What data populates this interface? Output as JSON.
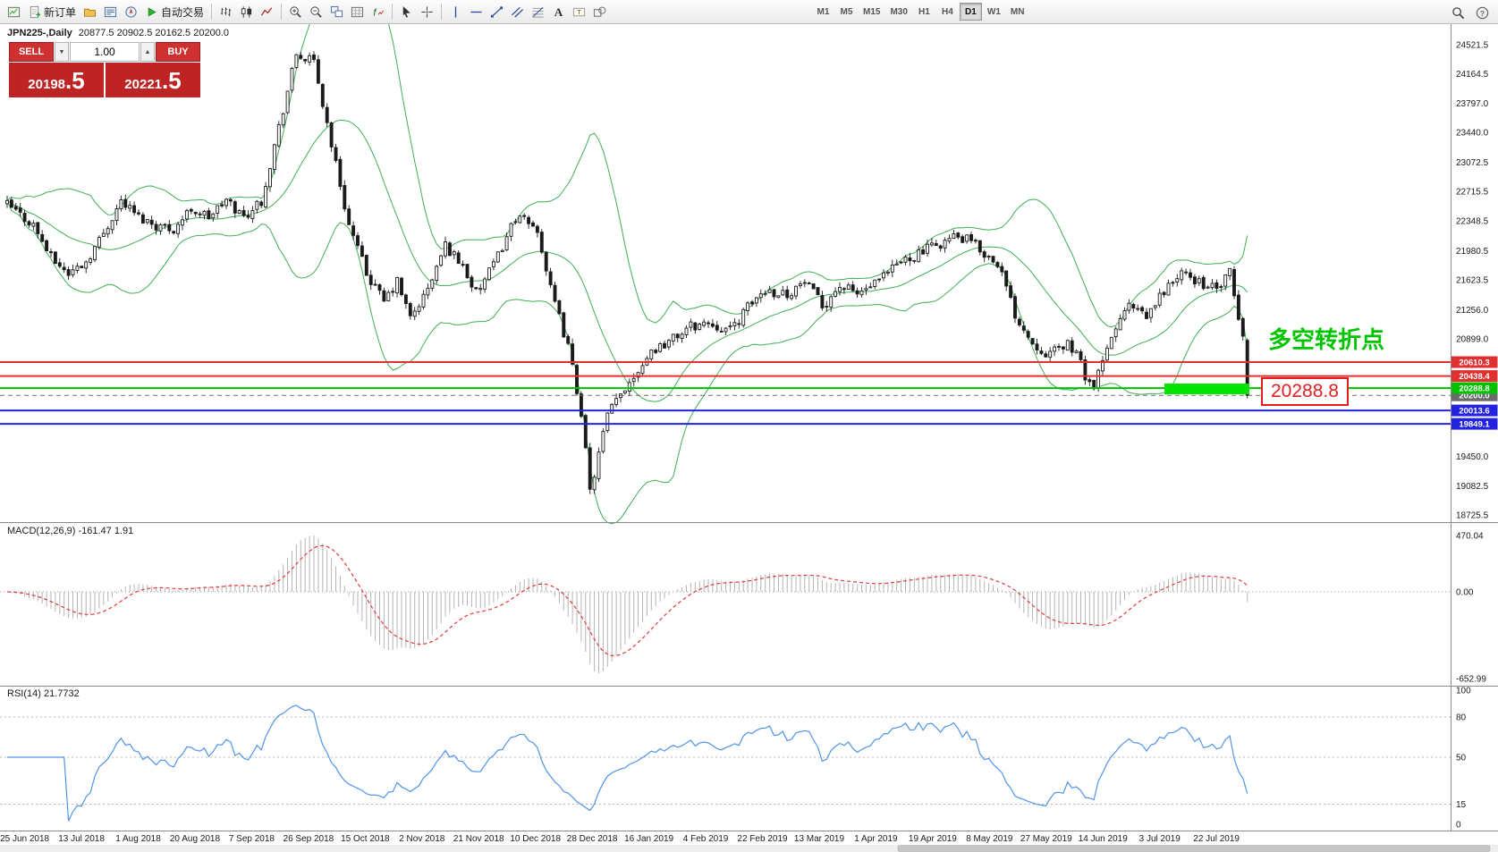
{
  "toolbar": {
    "groups": [
      {
        "items": [
          {
            "icon": "terminal"
          },
          {
            "icon": "new-order",
            "label": "新订单"
          },
          {
            "icon": "profiles"
          },
          {
            "icon": "market-watch"
          },
          {
            "icon": "navigator"
          },
          {
            "icon": "autotrading",
            "label": "自动交易"
          }
        ]
      },
      {
        "items": [
          {
            "icon": "bar-chart"
          },
          {
            "icon": "candlestick-chart"
          },
          {
            "icon": "line-chart"
          }
        ]
      },
      {
        "items": [
          {
            "icon": "zoom-in"
          },
          {
            "icon": "zoom-out"
          },
          {
            "icon": "tile-windows"
          },
          {
            "icon": "chart-grid"
          },
          {
            "icon": "indicators"
          }
        ]
      },
      {
        "items": [
          {
            "icon": "cursor"
          },
          {
            "icon": "crosshair"
          }
        ]
      },
      {
        "items": [
          {
            "icon": "vertical-line"
          },
          {
            "icon": "horizontal-line"
          },
          {
            "icon": "trendline"
          },
          {
            "icon": "channel"
          },
          {
            "icon": "fibonacci"
          },
          {
            "icon": "text"
          },
          {
            "icon": "text-label"
          },
          {
            "icon": "shapes"
          }
        ]
      }
    ],
    "timeframes": [
      "M1",
      "M5",
      "M15",
      "M30",
      "H1",
      "H4",
      "D1",
      "W1",
      "MN"
    ],
    "active_timeframe": "D1",
    "right_items": [
      {
        "icon": "search"
      },
      {
        "icon": "help"
      }
    ]
  },
  "chart": {
    "title": "JPN225-,Daily",
    "ohlc": "20877.5 20902.5 20162.5 20200.0"
  },
  "trade_panel": {
    "sell_label": "SELL",
    "buy_label": "BUY",
    "volume": "1.00",
    "spin_down_icon": "▼",
    "spin_up_icon": "▲",
    "sell_price": "20198.5",
    "buy_price": "20221.5"
  },
  "annotations": {
    "turning_point": "多空转折点",
    "level_label": "20288.8"
  },
  "levels": [
    {
      "label": "20610.3",
      "value": 20610.3,
      "color": "#e03030",
      "width": 2
    },
    {
      "label": "20438.4",
      "value": 20438.4,
      "color": "#e03030",
      "width": 2
    },
    {
      "label": "20288.8",
      "value": 20288.8,
      "color": "#00c000",
      "width": 2
    },
    {
      "label": "20200.0",
      "value": 20200.0,
      "color": "#6a6a6a",
      "width": 1,
      "dashed": true
    },
    {
      "label": "20013.6",
      "value": 20013.6,
      "color": "#2222e0",
      "width": 2
    },
    {
      "label": "19849.1",
      "value": 19849.1,
      "color": "#2222e0",
      "width": 2
    }
  ],
  "price_axis": {
    "ticks": [
      "24521.5",
      "24164.5",
      "23797.0",
      "23440.0",
      "23072.5",
      "22715.5",
      "22348.5",
      "21980.5",
      "21623.5",
      "21256.0",
      "20899.0",
      "19450.0",
      "19082.5",
      "18725.5"
    ]
  },
  "macd_panel": {
    "label": "MACD(12,26,9) -161.47 1.91",
    "axis": [
      {
        "label": "470.04",
        "value": 470.04
      },
      {
        "label": "0.00",
        "value": 0
      },
      {
        "label": "-652.99",
        "value": -652.99
      }
    ],
    "max": 470.04,
    "min": -652.99
  },
  "rsi_panel": {
    "label": "RSI(14) 21.7732",
    "axis": [
      {
        "label": "100",
        "value": 100
      },
      {
        "label": "80",
        "value": 80
      },
      {
        "label": "50",
        "value": 50
      },
      {
        "label": "15",
        "value": 15
      },
      {
        "label": "0",
        "value": 0
      }
    ],
    "levels": [
      80,
      50,
      15
    ],
    "current": 21.7732
  },
  "date_axis": {
    "labels": [
      "25 Jun 2018",
      "13 Jul 2018",
      "1 Aug 2018",
      "20 Aug 2018",
      "7 Sep 2018",
      "26 Sep 2018",
      "15 Oct 2018",
      "2 Nov 2018",
      "21 Nov 2018",
      "10 Dec 2018",
      "28 Dec 2018",
      "16 Jan 2019",
      "4 Feb 2019",
      "22 Feb 2019",
      "13 Mar 2019",
      "1 Apr 2019",
      "19 Apr 2019",
      "8 May 2019",
      "27 May 2019",
      "14 Jun 2019",
      "3 Jul 2019",
      "22 Jul 2019"
    ]
  },
  "colors": {
    "bollinger": "#3fae57",
    "candle_up": "#ffffff",
    "candle_down": "#1a1a1a",
    "candle_outline": "#1a1a1a",
    "macd_histogram": "#b4b4b4",
    "macd_signal": "#e23a3a",
    "rsi_line": "#4f94e8",
    "annotation_green": "#00c400",
    "highlight_green": "#00e400",
    "callout_red": "#e02020"
  },
  "chart_data": {
    "type": "candlestick",
    "symbol": "JPN225-",
    "period": "Daily",
    "count": 284,
    "ylim": [
      18638,
      24774
    ],
    "ohlc_current": [
      20877.5,
      20902.5,
      20162.5,
      20200.0
    ],
    "macd_current": [
      -161.47,
      1.91
    ],
    "rsi_current": 21.7732,
    "indicators": [
      "Bollinger Bands (20,2)",
      "MACD(12,26,9)",
      "RSI(14)"
    ],
    "noise": 130,
    "seed": 42,
    "anchors": [
      [
        0,
        22550
      ],
      [
        6,
        22300
      ],
      [
        10,
        21900
      ],
      [
        14,
        21700
      ],
      [
        18,
        21850
      ],
      [
        22,
        22200
      ],
      [
        26,
        22600
      ],
      [
        30,
        22400
      ],
      [
        34,
        22300
      ],
      [
        38,
        22250
      ],
      [
        42,
        22500
      ],
      [
        46,
        22400
      ],
      [
        50,
        22600
      ],
      [
        54,
        22400
      ],
      [
        58,
        22600
      ],
      [
        62,
        23500
      ],
      [
        66,
        24400
      ],
      [
        70,
        24300
      ],
      [
        74,
        23300
      ],
      [
        78,
        22300
      ],
      [
        82,
        21700
      ],
      [
        86,
        21350
      ],
      [
        89,
        21600
      ],
      [
        92,
        21150
      ],
      [
        96,
        21500
      ],
      [
        100,
        22050
      ],
      [
        104,
        21800
      ],
      [
        107,
        21450
      ],
      [
        111,
        21800
      ],
      [
        116,
        22400
      ],
      [
        121,
        22250
      ],
      [
        124,
        21500
      ],
      [
        128,
        20800
      ],
      [
        131,
        20000
      ],
      [
        133,
        19000
      ],
      [
        137,
        19950
      ],
      [
        141,
        20300
      ],
      [
        147,
        20750
      ],
      [
        152,
        20900
      ],
      [
        156,
        21050
      ],
      [
        160,
        21100
      ],
      [
        165,
        21000
      ],
      [
        170,
        21350
      ],
      [
        173,
        21500
      ],
      [
        178,
        21450
      ],
      [
        182,
        21600
      ],
      [
        186,
        21300
      ],
      [
        190,
        21550
      ],
      [
        194,
        21450
      ],
      [
        199,
        21600
      ],
      [
        204,
        21850
      ],
      [
        208,
        21950
      ],
      [
        212,
        22050
      ],
      [
        216,
        22150
      ],
      [
        220,
        22100
      ],
      [
        224,
        21900
      ],
      [
        226,
        21850
      ],
      [
        230,
        21200
      ],
      [
        234,
        20850
      ],
      [
        238,
        20700
      ],
      [
        242,
        20850
      ],
      [
        244,
        20700
      ],
      [
        246,
        20450
      ],
      [
        248,
        20300
      ],
      [
        250,
        20600
      ],
      [
        253,
        21050
      ],
      [
        256,
        21300
      ],
      [
        260,
        21150
      ],
      [
        264,
        21500
      ],
      [
        268,
        21700
      ],
      [
        272,
        21600
      ],
      [
        276,
        21500
      ],
      [
        279,
        21700
      ],
      [
        281,
        21150
      ],
      [
        282,
        20900
      ],
      [
        283,
        20200
      ]
    ]
  }
}
